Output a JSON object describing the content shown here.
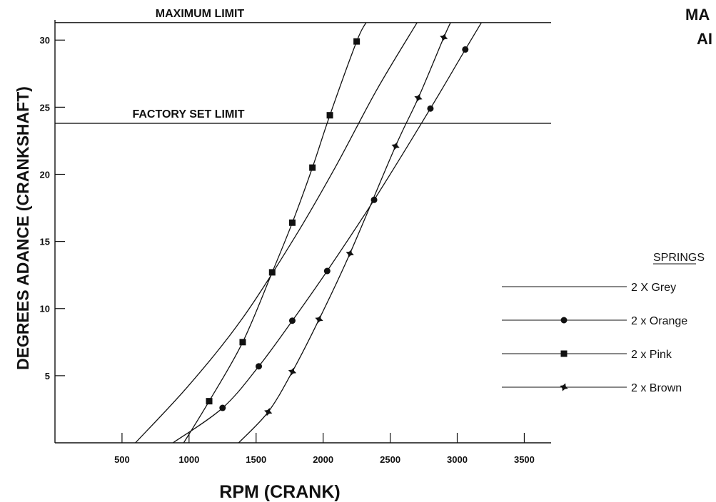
{
  "corner_text": [
    "MA",
    "AI"
  ],
  "chart_data": {
    "type": "line",
    "xlabel": "RPM (CRANK)",
    "ylabel": "DEGREES ADANCE (CRANKSHAFT)",
    "xlim": [
      0,
      3700
    ],
    "ylim": [
      0,
      31.5
    ],
    "xticks": [
      500,
      1000,
      1500,
      2000,
      2500,
      3000,
      3500
    ],
    "yticks": [
      5,
      10,
      15,
      20,
      25,
      30
    ],
    "grid": false,
    "legend_title": "SPRINGS",
    "legend_position": "right",
    "reference_lines": [
      {
        "label": "MAXIMUM LIMIT",
        "y": 31.3
      },
      {
        "label": "FACTORY SET LIMIT",
        "y": 23.8
      }
    ],
    "series": [
      {
        "name": "2 X Grey",
        "marker": "none",
        "curve": [
          [
            600,
            0
          ],
          [
            1000,
            4.3
          ],
          [
            1400,
            9.3
          ],
          [
            1800,
            15.5
          ],
          [
            2100,
            20.7
          ],
          [
            2400,
            26.3
          ],
          [
            2700,
            31.3
          ]
        ],
        "points": []
      },
      {
        "name": "2 x Orange",
        "marker": "circle",
        "curve": [
          [
            880,
            0
          ],
          [
            1250,
            2.6
          ],
          [
            1520,
            5.7
          ],
          [
            1770,
            9.1
          ],
          [
            2030,
            12.8
          ],
          [
            2380,
            18.1
          ],
          [
            2800,
            24.9
          ],
          [
            3060,
            29.3
          ],
          [
            3180,
            31.3
          ]
        ],
        "points": [
          [
            1250,
            2.6
          ],
          [
            1520,
            5.7
          ],
          [
            1770,
            9.1
          ],
          [
            2030,
            12.8
          ],
          [
            2380,
            18.1
          ],
          [
            2800,
            24.9
          ],
          [
            3060,
            29.3
          ]
        ]
      },
      {
        "name": "2 x Pink",
        "marker": "square",
        "curve": [
          [
            960,
            0
          ],
          [
            1150,
            3.1
          ],
          [
            1400,
            7.5
          ],
          [
            1620,
            12.7
          ],
          [
            1770,
            16.4
          ],
          [
            1920,
            20.5
          ],
          [
            2050,
            24.4
          ],
          [
            2250,
            29.9
          ],
          [
            2320,
            31.3
          ]
        ],
        "points": [
          [
            1150,
            3.1
          ],
          [
            1400,
            7.5
          ],
          [
            1620,
            12.7
          ],
          [
            1770,
            16.4
          ],
          [
            1920,
            20.5
          ],
          [
            2050,
            24.4
          ],
          [
            2250,
            29.9
          ]
        ]
      },
      {
        "name": "2 x Brown",
        "marker": "star",
        "curve": [
          [
            1370,
            0
          ],
          [
            1590,
            2.3
          ],
          [
            1770,
            5.3
          ],
          [
            1970,
            9.2
          ],
          [
            2200,
            14.1
          ],
          [
            2540,
            22.1
          ],
          [
            2710,
            25.7
          ],
          [
            2900,
            30.2
          ],
          [
            2950,
            31.3
          ]
        ],
        "points": [
          [
            1590,
            2.3
          ],
          [
            1770,
            5.3
          ],
          [
            1970,
            9.2
          ],
          [
            2200,
            14.1
          ],
          [
            2540,
            22.1
          ],
          [
            2710,
            25.7
          ],
          [
            2900,
            30.2
          ]
        ]
      }
    ]
  }
}
